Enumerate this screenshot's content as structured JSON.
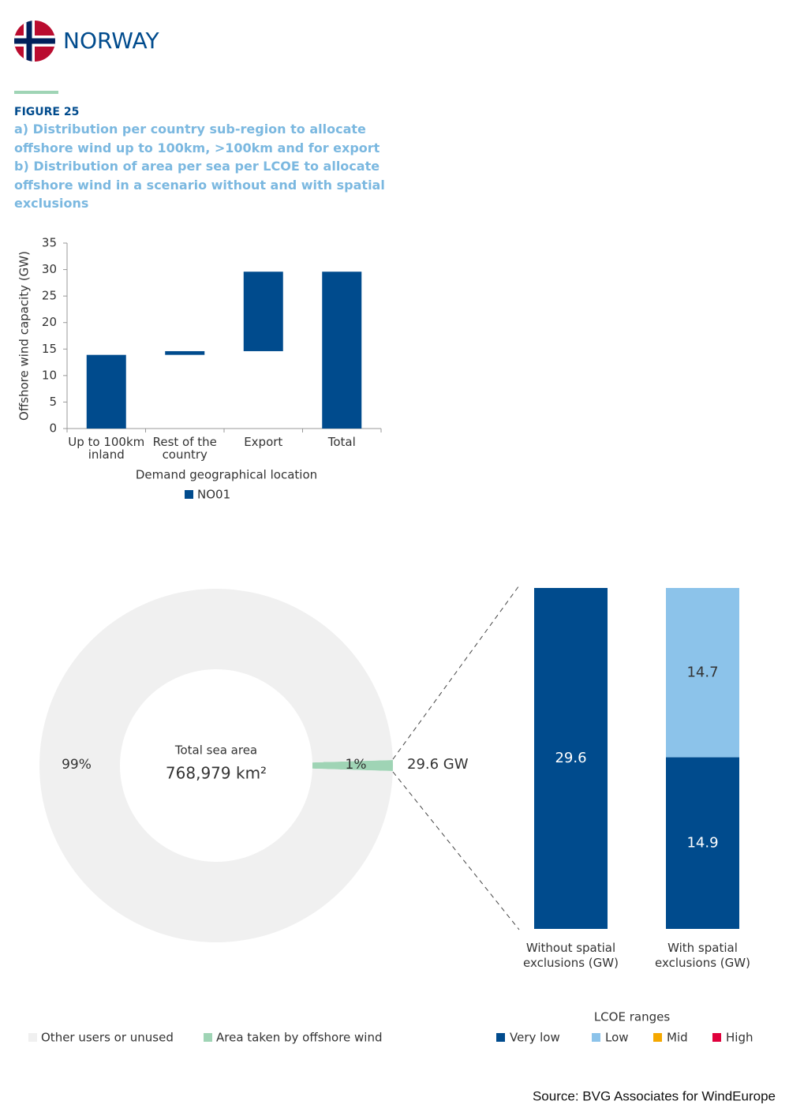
{
  "header": {
    "country": "NORWAY"
  },
  "figure": {
    "label": "FIGURE 25",
    "caption": [
      "a) Distribution per country sub-region to allocate offshore wind up to 100km, >100km and for export",
      "b) Distribution of area per sea per LCOE to allocate offshore wind in a scenario without and with spatial exclusions"
    ]
  },
  "chart_data": [
    {
      "type": "waterfall",
      "categories": [
        "Up to 100km inland",
        "Rest of the country",
        "Export",
        "Total"
      ],
      "series": [
        {
          "name": "NO01",
          "color": "#004b8d",
          "values": [
            13.9,
            0.7,
            15.0,
            29.6
          ]
        }
      ],
      "ylabel": "Offshore wind capacity (GW)",
      "xlabel": "Demand geographical location",
      "ylim": [
        0,
        35
      ],
      "yticks": [
        0,
        5,
        10,
        15,
        20,
        25,
        30,
        35
      ]
    },
    {
      "type": "donut",
      "categories": [
        "Other users or unused",
        "Area taken by offshore wind"
      ],
      "values": [
        99,
        1
      ],
      "value_labels": [
        "99%",
        "1%"
      ],
      "colors": [
        "#f0f0f0",
        "#9fd4b5"
      ],
      "center_title": "Total sea area",
      "center_value": "768,979 km²",
      "annotation": "29.6 GW"
    },
    {
      "type": "stacked_bar",
      "categories": [
        "Without spatial exclusions (GW)",
        "With spatial exclusions (GW)"
      ],
      "legend_title": "LCOE ranges",
      "series": [
        {
          "name": "Very low",
          "color": "#004b8d",
          "values": [
            29.6,
            14.9
          ]
        },
        {
          "name": "Low",
          "color": "#8cc3ea",
          "values": [
            0,
            14.7
          ]
        },
        {
          "name": "Mid",
          "color": "#f5a800",
          "values": [
            0,
            0
          ]
        },
        {
          "name": "High",
          "color": "#e0003c",
          "values": [
            0,
            0
          ]
        }
      ]
    }
  ],
  "source": "Source: BVG Associates for WindEurope"
}
